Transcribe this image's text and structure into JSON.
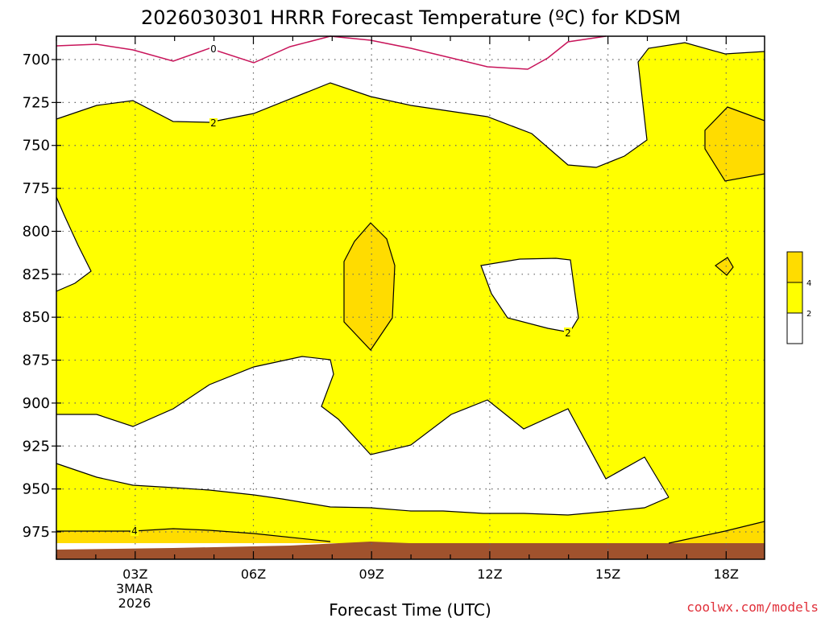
{
  "chart_data": {
    "type": "heatmap",
    "title": "2026030301 HRRR Forecast Temperature (ºC) for KDSM",
    "xlabel": "Forecast Time (UTC)",
    "ylabel": "",
    "x_tick_labels": [
      "03Z",
      "06Z",
      "09Z",
      "12Z",
      "15Z",
      "18Z"
    ],
    "x_date_label": [
      "3MAR",
      "2026"
    ],
    "y_tick_labels": [
      "700",
      "725",
      "750",
      "775",
      "800",
      "825",
      "850",
      "875",
      "900",
      "925",
      "950",
      "975"
    ],
    "y_scale": "pressure (mb), inverted",
    "grid": true,
    "contour_levels_c": [
      0,
      2,
      4
    ],
    "contour_labels": [
      "0",
      "2",
      "2",
      "4"
    ],
    "colorbar": {
      "ticks": [
        "4",
        "2"
      ],
      "bins": [
        {
          "range": "below 2",
          "color": "#ffffff"
        },
        {
          "range": "2-4",
          "color": "#ffff00"
        },
        {
          "range": "above 4",
          "color": "#ffdc00"
        }
      ],
      "placement": "right"
    },
    "colors": {
      "zero_line": "#c8145a",
      "warm": "#ffff00",
      "warmer": "#ffdc00",
      "ground": "#a0522d"
    },
    "credit": "coolwx.com/models"
  }
}
